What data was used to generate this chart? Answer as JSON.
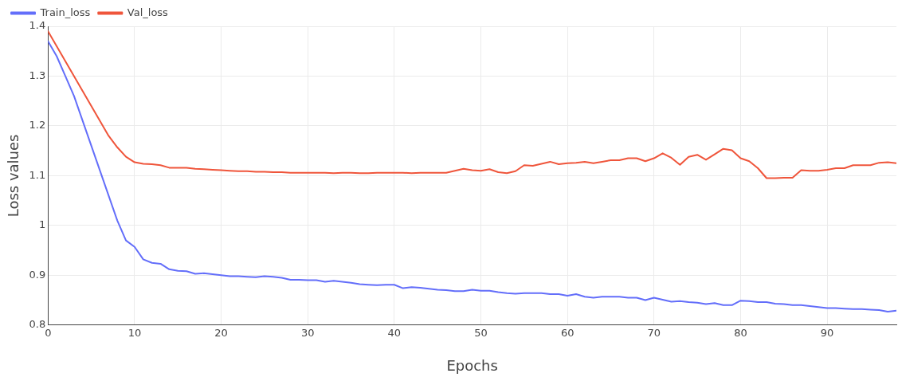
{
  "chart_data": {
    "type": "line",
    "xlabel": "Epochs",
    "ylabel": "Loss values",
    "x": [
      0,
      1,
      2,
      3,
      4,
      5,
      6,
      7,
      8,
      9,
      10,
      11,
      12,
      13,
      14,
      15,
      16,
      17,
      18,
      19,
      20,
      21,
      22,
      23,
      24,
      25,
      26,
      27,
      28,
      29,
      30,
      31,
      32,
      33,
      34,
      35,
      36,
      37,
      38,
      39,
      40,
      41,
      42,
      43,
      44,
      45,
      46,
      47,
      48,
      49,
      50,
      51,
      52,
      53,
      54,
      55,
      56,
      57,
      58,
      59,
      60,
      61,
      62,
      63,
      64,
      65,
      66,
      67,
      68,
      69,
      70,
      71,
      72,
      73,
      74,
      75,
      76,
      77,
      78,
      79,
      80,
      81,
      82,
      83,
      84,
      85,
      86,
      87,
      88,
      89,
      90,
      91,
      92,
      93,
      94,
      95,
      96,
      97,
      98
    ],
    "series": [
      {
        "name": "Train_loss",
        "color": "#636efa",
        "values": [
          1.37,
          1.34,
          1.3,
          1.26,
          1.21,
          1.16,
          1.11,
          1.06,
          1.01,
          0.97,
          0.957,
          0.932,
          0.925,
          0.923,
          0.912,
          0.909,
          0.908,
          0.903,
          0.904,
          0.902,
          0.9,
          0.898,
          0.898,
          0.897,
          0.896,
          0.898,
          0.897,
          0.895,
          0.891,
          0.891,
          0.89,
          0.89,
          0.887,
          0.889,
          0.887,
          0.885,
          0.882,
          0.881,
          0.88,
          0.881,
          0.881,
          0.874,
          0.876,
          0.875,
          0.873,
          0.871,
          0.87,
          0.868,
          0.868,
          0.871,
          0.869,
          0.869,
          0.866,
          0.864,
          0.863,
          0.864,
          0.864,
          0.864,
          0.862,
          0.862,
          0.859,
          0.862,
          0.857,
          0.855,
          0.857,
          0.857,
          0.857,
          0.855,
          0.855,
          0.85,
          0.855,
          0.851,
          0.847,
          0.848,
          0.846,
          0.845,
          0.842,
          0.844,
          0.84,
          0.84,
          0.849,
          0.848,
          0.846,
          0.846,
          0.843,
          0.842,
          0.84,
          0.84,
          0.838,
          0.836,
          0.834,
          0.834,
          0.833,
          0.832,
          0.832,
          0.831,
          0.83,
          0.827,
          0.829
        ]
      },
      {
        "name": "Val_loss",
        "color": "#ef553b",
        "values": [
          1.39,
          1.36,
          1.33,
          1.3,
          1.27,
          1.24,
          1.21,
          1.18,
          1.157,
          1.138,
          1.127,
          1.124,
          1.123,
          1.121,
          1.116,
          1.116,
          1.116,
          1.114,
          1.113,
          1.112,
          1.111,
          1.11,
          1.109,
          1.109,
          1.108,
          1.108,
          1.107,
          1.107,
          1.106,
          1.106,
          1.106,
          1.106,
          1.106,
          1.105,
          1.106,
          1.106,
          1.105,
          1.105,
          1.106,
          1.106,
          1.106,
          1.106,
          1.105,
          1.106,
          1.106,
          1.106,
          1.106,
          1.11,
          1.114,
          1.111,
          1.11,
          1.113,
          1.107,
          1.105,
          1.109,
          1.121,
          1.12,
          1.124,
          1.128,
          1.123,
          1.125,
          1.126,
          1.128,
          1.125,
          1.128,
          1.131,
          1.131,
          1.135,
          1.135,
          1.129,
          1.135,
          1.145,
          1.136,
          1.122,
          1.138,
          1.142,
          1.132,
          1.143,
          1.154,
          1.151,
          1.135,
          1.129,
          1.115,
          1.095,
          1.095,
          1.096,
          1.096,
          1.111,
          1.11,
          1.11,
          1.112,
          1.115,
          1.115,
          1.121,
          1.121,
          1.121,
          1.126,
          1.127,
          1.125
        ]
      }
    ],
    "xlim": [
      0,
      98
    ],
    "xticks": [
      0,
      10,
      20,
      30,
      40,
      50,
      60,
      70,
      80,
      90
    ],
    "ylim": [
      0.8,
      1.4
    ],
    "yticks": [
      0.8,
      0.9,
      1,
      1.1,
      1.2,
      1.3,
      1.4
    ],
    "grid": true,
    "legend": "top left",
    "marker": "none",
    "line_style": "solid"
  }
}
